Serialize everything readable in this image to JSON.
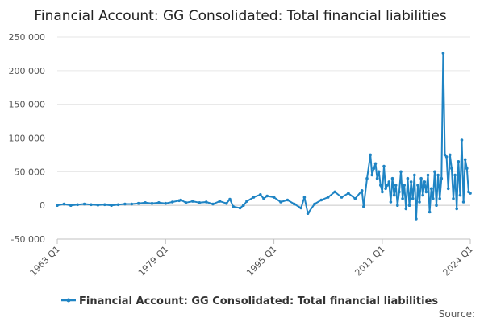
{
  "chart_data": {
    "type": "line",
    "title": "Financial Account: GG Consolidated: Total financial liabilities",
    "xlabel": "",
    "ylabel": "",
    "x_start": "1963 Q1",
    "x_end": "2024 Q1",
    "x_tick_labels": [
      "1963 Q1",
      "1979 Q1",
      "1995 Q1",
      "2011 Q1",
      "2024 Q1"
    ],
    "y_ticks": [
      -50000,
      0,
      50000,
      100000,
      150000,
      200000,
      250000
    ],
    "y_tick_labels": [
      "-50 000",
      "0",
      "50 000",
      "100 000",
      "150 000",
      "200 000",
      "250 000"
    ],
    "ylim": [
      -50000,
      250000
    ],
    "grid": true,
    "legend_position": "bottom",
    "series": [
      {
        "name": "Financial Account: GG Consolidated: Total financial liabilities",
        "color": "#1f84c4",
        "points": [
          [
            "1963 Q1",
            0
          ],
          [
            "1964 Q1",
            2000
          ],
          [
            "1965 Q1",
            0
          ],
          [
            "1966 Q1",
            1000
          ],
          [
            "1967 Q1",
            2000
          ],
          [
            "1968 Q1",
            1000
          ],
          [
            "1969 Q1",
            500
          ],
          [
            "1970 Q1",
            1000
          ],
          [
            "1971 Q1",
            0
          ],
          [
            "1972 Q1",
            1000
          ],
          [
            "1973 Q1",
            2000
          ],
          [
            "1974 Q1",
            2000
          ],
          [
            "1975 Q1",
            3000
          ],
          [
            "1976 Q1",
            4000
          ],
          [
            "1977 Q1",
            3000
          ],
          [
            "1978 Q1",
            4000
          ],
          [
            "1979 Q1",
            3000
          ],
          [
            "1980 Q1",
            5000
          ],
          [
            "1981 Q1",
            7000
          ],
          [
            "1981 Q2",
            8000
          ],
          [
            "1982 Q1",
            4000
          ],
          [
            "1983 Q1",
            6000
          ],
          [
            "1984 Q1",
            4000
          ],
          [
            "1985 Q1",
            5000
          ],
          [
            "1986 Q1",
            2000
          ],
          [
            "1987 Q1",
            6000
          ],
          [
            "1988 Q1",
            3000
          ],
          [
            "1988 Q3",
            9000
          ],
          [
            "1989 Q1",
            -2000
          ],
          [
            "1990 Q1",
            -4000
          ],
          [
            "1990 Q3",
            0
          ],
          [
            "1991 Q1",
            6000
          ],
          [
            "1992 Q1",
            12000
          ],
          [
            "1993 Q1",
            16000
          ],
          [
            "1993 Q3",
            10000
          ],
          [
            "1994 Q1",
            14000
          ],
          [
            "1995 Q1",
            12000
          ],
          [
            "1996 Q1",
            5000
          ],
          [
            "1997 Q1",
            8000
          ],
          [
            "1998 Q1",
            2000
          ],
          [
            "1999 Q1",
            -4000
          ],
          [
            "1999 Q3",
            12000
          ],
          [
            "2000 Q1",
            -12000
          ],
          [
            "2001 Q1",
            2000
          ],
          [
            "2002 Q1",
            8000
          ],
          [
            "2003 Q1",
            12000
          ],
          [
            "2004 Q1",
            20000
          ],
          [
            "2005 Q1",
            12000
          ],
          [
            "2006 Q1",
            18000
          ],
          [
            "2007 Q1",
            10000
          ],
          [
            "2008 Q1",
            22000
          ],
          [
            "2008 Q2",
            -2000
          ],
          [
            "2008 Q4",
            40000
          ],
          [
            "2009 Q2",
            75000
          ],
          [
            "2009 Q3",
            45000
          ],
          [
            "2009 Q4",
            55000
          ],
          [
            "2010 Q1",
            62000
          ],
          [
            "2010 Q2",
            40000
          ],
          [
            "2010 Q3",
            50000
          ],
          [
            "2010 Q4",
            30000
          ],
          [
            "2011 Q1",
            20000
          ],
          [
            "2011 Q2",
            58000
          ],
          [
            "2011 Q3",
            25000
          ],
          [
            "2011 Q4",
            30000
          ],
          [
            "2012 Q1",
            35000
          ],
          [
            "2012 Q2",
            5000
          ],
          [
            "2012 Q3",
            40000
          ],
          [
            "2012 Q4",
            15000
          ],
          [
            "2013 Q1",
            30000
          ],
          [
            "2013 Q2",
            0
          ],
          [
            "2013 Q3",
            20000
          ],
          [
            "2013 Q4",
            50000
          ],
          [
            "2014 Q1",
            10000
          ],
          [
            "2014 Q2",
            30000
          ],
          [
            "2014 Q3",
            -5000
          ],
          [
            "2014 Q4",
            40000
          ],
          [
            "2015 Q1",
            0
          ],
          [
            "2015 Q2",
            35000
          ],
          [
            "2015 Q3",
            10000
          ],
          [
            "2015 Q4",
            45000
          ],
          [
            "2016 Q1",
            -20000
          ],
          [
            "2016 Q2",
            30000
          ],
          [
            "2016 Q3",
            5000
          ],
          [
            "2016 Q4",
            40000
          ],
          [
            "2017 Q1",
            15000
          ],
          [
            "2017 Q2",
            35000
          ],
          [
            "2017 Q3",
            20000
          ],
          [
            "2017 Q4",
            45000
          ],
          [
            "2018 Q1",
            -10000
          ],
          [
            "2018 Q2",
            25000
          ],
          [
            "2018 Q3",
            10000
          ],
          [
            "2018 Q4",
            50000
          ],
          [
            "2019 Q1",
            0
          ],
          [
            "2019 Q2",
            45000
          ],
          [
            "2019 Q3",
            10000
          ],
          [
            "2019 Q4",
            40000
          ],
          [
            "2020 Q1",
            226000
          ],
          [
            "2020 Q2",
            75000
          ],
          [
            "2020 Q3",
            72000
          ],
          [
            "2020 Q4",
            25000
          ],
          [
            "2021 Q1",
            75000
          ],
          [
            "2021 Q2",
            55000
          ],
          [
            "2021 Q3",
            10000
          ],
          [
            "2021 Q4",
            45000
          ],
          [
            "2022 Q1",
            -5000
          ],
          [
            "2022 Q2",
            65000
          ],
          [
            "2022 Q3",
            15000
          ],
          [
            "2022 Q4",
            97000
          ],
          [
            "2023 Q1",
            5000
          ],
          [
            "2023 Q2",
            68000
          ],
          [
            "2023 Q3",
            55000
          ],
          [
            "2023 Q4",
            20000
          ],
          [
            "2024 Q1",
            18000
          ]
        ]
      }
    ]
  },
  "source_label": "Source:"
}
